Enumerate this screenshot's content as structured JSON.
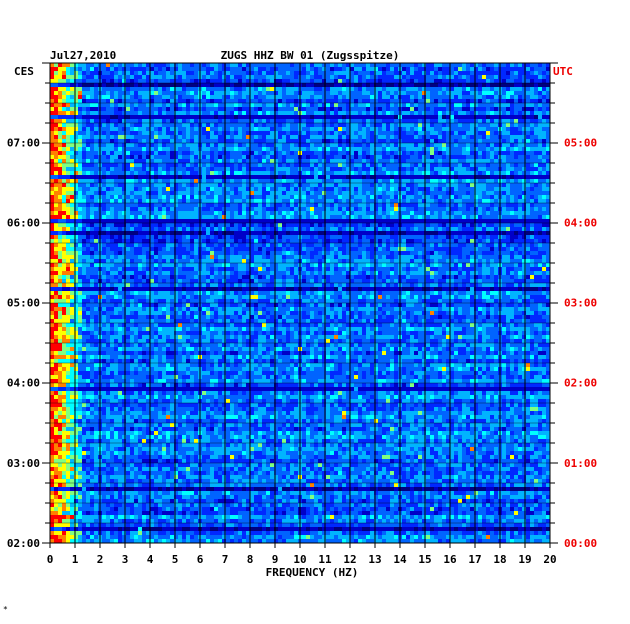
{
  "chart_data": {
    "type": "heatmap",
    "date": "Jul27,2010",
    "title": "ZUGS HHZ BW 01 (Zugsspitze)",
    "left_timezone": "CES",
    "right_timezone": "UTC",
    "xlabel": "FREQUENCY (HZ)",
    "xlim": [
      0,
      20
    ],
    "x_ticks": [
      "0",
      "1",
      "2",
      "3",
      "4",
      "5",
      "6",
      "7",
      "8",
      "9",
      "10",
      "11",
      "12",
      "13",
      "14",
      "15",
      "16",
      "17",
      "18",
      "19",
      "20"
    ],
    "left_time_ticks": [
      {
        "hour": 7,
        "label": "07:00"
      },
      {
        "hour": 6,
        "label": "06:00"
      },
      {
        "hour": 5,
        "label": "05:00"
      },
      {
        "hour": 4,
        "label": "04:00"
      },
      {
        "hour": 3,
        "label": "03:00"
      },
      {
        "hour": 2,
        "label": "02:00"
      }
    ],
    "right_time_ticks": [
      {
        "hour": 5,
        "label": "05:00"
      },
      {
        "hour": 4,
        "label": "04:00"
      },
      {
        "hour": 3,
        "label": "03:00"
      },
      {
        "hour": 2,
        "label": "02:00"
      },
      {
        "hour": 1,
        "label": "01:00"
      },
      {
        "hour": 0,
        "label": "00:00"
      }
    ],
    "left_time_range_hours": [
      2.0,
      7.99
    ],
    "colormap": [
      "#000080",
      "#0000c8",
      "#0028ff",
      "#0064ff",
      "#00b4ff",
      "#00ffff",
      "#80ff80",
      "#ffff00",
      "#ff8000",
      "#ff0000"
    ],
    "grid": true,
    "footer_mark": "*"
  }
}
